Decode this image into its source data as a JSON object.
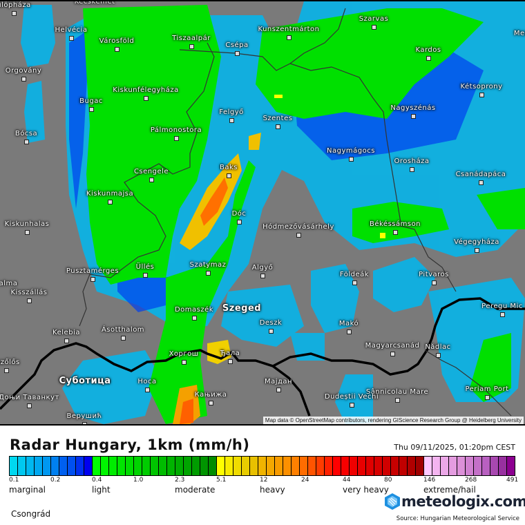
{
  "title": "Radar Hungary, 1km (mm/h)",
  "datetime": "Thu 09/11/2025, 01:20pm CEST",
  "region": "Csongrád",
  "attribution": "Map data © OpenStreetMap contributors, rendering GIScience Research Group @ Heidelberg University",
  "logo_text": "meteologix.com",
  "source": "Source: Hungarian Meteorological Service",
  "legend": {
    "ticks": [
      "0.1",
      "0.2",
      "0.4",
      "1.0",
      "2.3",
      "5.1",
      "12",
      "24",
      "44",
      "80",
      "146",
      "268",
      "491"
    ],
    "categories": [
      "marginal",
      "light",
      "moderate",
      "heavy",
      "very heavy",
      "extreme/hail"
    ],
    "colors": [
      "#00d8f0",
      "#00c8f0",
      "#00b8f0",
      "#00a8f0",
      "#0098f0",
      "#0080f0",
      "#0060f0",
      "#0050f0",
      "#0030f0",
      "#0000f0",
      "#00ff00",
      "#00f500",
      "#00ec00",
      "#00e400",
      "#00dc00",
      "#00d400",
      "#00cc00",
      "#00c400",
      "#00bc00",
      "#00b400",
      "#00ac00",
      "#00a400",
      "#009c00",
      "#009400",
      "#008c00",
      "#ffff00",
      "#f8ec00",
      "#f0dc00",
      "#e8cc00",
      "#e8c000",
      "#f0b400",
      "#f4a800",
      "#f89c00",
      "#fc9000",
      "#ff8000",
      "#ff6c00",
      "#ff5400",
      "#ff3c00",
      "#ff2000",
      "#ff0000",
      "#f80000",
      "#f00000",
      "#e80000",
      "#e00000",
      "#d80000",
      "#d00000",
      "#c80000",
      "#c00000",
      "#b00000",
      "#a00000",
      "#ffc8ff",
      "#f4b4f0",
      "#eca8e8",
      "#e49ce0",
      "#dc90d8",
      "#d080d0",
      "#c470c8",
      "#b860c0",
      "#a848b0",
      "#9830a0",
      "#8c0090"
    ]
  },
  "cities": [
    "Kecskemét",
    "ülöpháza",
    "Helvécia",
    "Városföld",
    "Tiszaalpár",
    "Csépa",
    "Kunszentmárton",
    "Szarvas",
    "Kardos",
    "Mező",
    "Orgovány",
    "Kiskunfélegyháza",
    "Bugac",
    "Kétsoprony",
    "Nagyszénás",
    "Felgyő",
    "Szentes",
    "Pálmonostora",
    "Bócsa",
    "Nagymágocs",
    "Orosháza",
    "Baks",
    "Csengele",
    "Csanádapáca",
    "Kiskunmajsa",
    "Dóc",
    "Kiskunhalas",
    "Békéssámson",
    "Hódmezővásárhely",
    "Végegyháza",
    "Üllés",
    "Szatymaz",
    "Algyő",
    "Pusztamérges",
    "Földeák",
    "Pitvaros",
    "alma",
    "Kisszállás",
    "Domaszék",
    "Szeged",
    "Peregu Mic",
    "Deszk",
    "Makó",
    "Kelebia",
    "Ásotthalom",
    "Magyarcsanád",
    "Nădlac",
    "Хоргош",
    "Ђала",
    "sszőlős",
    "Суботица",
    "Носа",
    "Мајдан",
    "Periam Port",
    "Sânnicolau Mare",
    "Кањижа",
    "Dudeștii Vechi",
    "Доњи Таванкут",
    "Верушић"
  ]
}
